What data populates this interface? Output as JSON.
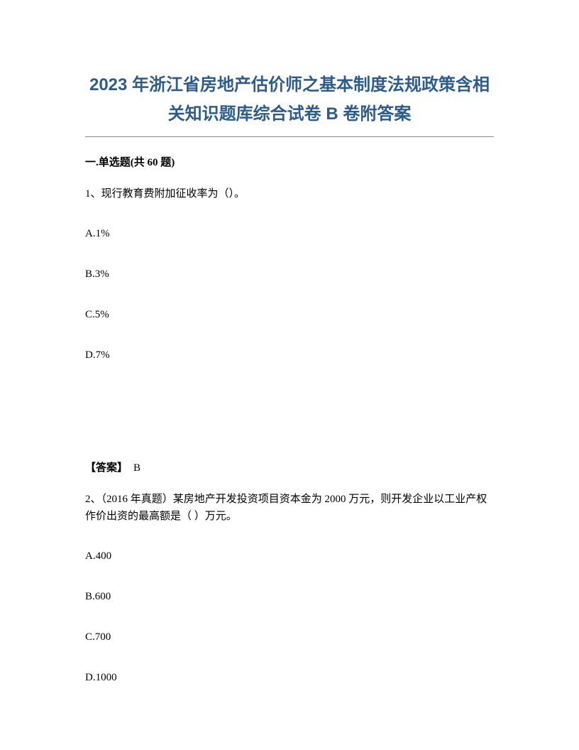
{
  "title": "2023 年浙江省房地产估价师之基本制度法规政策含相关知识题库综合试卷 B 卷附答案",
  "section_header": "一.单选题(共 60 题)",
  "questions": [
    {
      "number": "1、",
      "text": "现行教育费附加征收率为（）。",
      "options": {
        "A": "A.1%",
        "B": "B.3%",
        "C": "C.5%",
        "D": "D.7%"
      },
      "answer_label": "【答案】",
      "answer_value": "B"
    },
    {
      "number": "2、",
      "text": "（2016 年真题）某房地产开发投资项目资本金为 2000 万元，则开发企业以工业产权作价出资的最高额是（  ）万元。",
      "options": {
        "A": "A.400",
        "B": "B.600",
        "C": "C.700",
        "D": "D.1000"
      }
    }
  ],
  "colors": {
    "title_color": "#2d5c8a",
    "text_color": "#000000",
    "background": "#ffffff",
    "divider_color": "#888888"
  },
  "typography": {
    "title_fontsize": 24,
    "body_fontsize": 15,
    "title_font": "Microsoft YaHei",
    "body_font": "SimSun"
  }
}
